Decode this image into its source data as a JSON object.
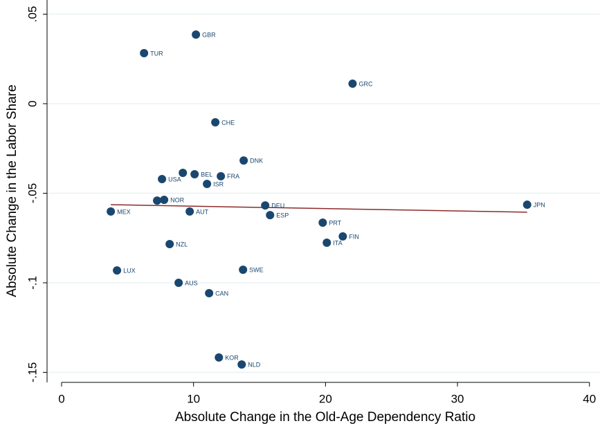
{
  "chart_data": {
    "type": "scatter",
    "x_label": "Absolute Change in the Old-Age Dependency Ratio",
    "y_label": "Absolute Change in the Labor Share",
    "color": "#1a476f",
    "grid": true,
    "xlim": [
      -1.1,
      40.8
    ],
    "ylim": [
      -0.1556,
      0.0579
    ],
    "xticks": [
      0,
      10,
      20,
      30,
      40
    ],
    "yticks": [
      {
        "value": 0.05,
        "label": ".05"
      },
      0,
      {
        "value": -0.05,
        "label": "-.05"
      },
      {
        "value": -0.1,
        "label": "-.1"
      },
      {
        "value": -0.15,
        "label": "-.15"
      }
    ],
    "labels": [
      "GBR",
      "TUR",
      "GRC",
      "CHE",
      "DNK",
      null,
      "BEL",
      "FRA",
      "USA",
      "ISR",
      null,
      "NOR",
      "DEU",
      "JPN",
      "MEX",
      "AUT",
      "ESP",
      "PRT",
      "FIN",
      "ITA",
      "NZL",
      "SWE",
      "LUX",
      "AUS",
      "CAN",
      "KOR",
      "NLD"
    ],
    "x": [
      10.18,
      6.25,
      22.05,
      11.65,
      13.8,
      9.19,
      10.08,
      12.07,
      7.61,
      11.02,
      7.24,
      7.77,
      15.43,
      35.28,
      3.73,
      9.71,
      15.8,
      19.79,
      21.31,
      20.1,
      8.19,
      13.75,
      4.2,
      8.87,
      11.18,
      11.92,
      13.65
    ],
    "values": [
      0.0386,
      0.0282,
      0.0112,
      -0.0104,
      -0.0317,
      -0.0386,
      -0.0394,
      -0.0405,
      -0.0421,
      -0.0448,
      -0.0541,
      -0.0537,
      -0.0568,
      -0.0564,
      -0.0602,
      -0.0602,
      -0.0622,
      -0.0664,
      -0.0741,
      -0.0776,
      -0.0784,
      -0.0927,
      -0.0931,
      -0.1,
      -0.1058,
      -0.1417,
      -0.1456
    ],
    "fit": {
      "x": [
        3.73,
        35.28
      ],
      "values": [
        -0.0564,
        -0.0606
      ],
      "color": "#8b2a2a"
    }
  }
}
